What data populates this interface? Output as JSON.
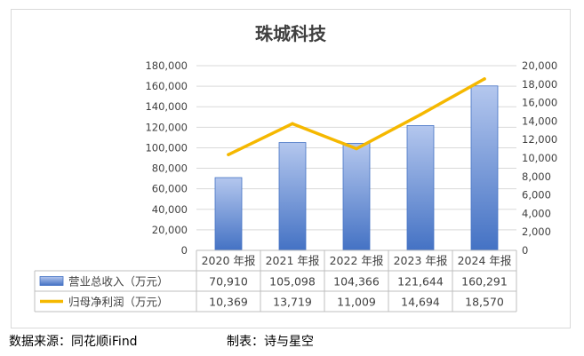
{
  "chart_data": {
    "type": "bar",
    "title": "珠城科技",
    "categories": [
      "2020 年报",
      "2021 年报",
      "2022 年报",
      "2023 年报",
      "2024 年报"
    ],
    "series": [
      {
        "name": "营业总收入（万元）",
        "type": "bar",
        "axis": "left",
        "values": [
          70910,
          105098,
          104366,
          121644,
          160291
        ],
        "labels": [
          "70,910",
          "105,098",
          "104,366",
          "121,644",
          "160,291"
        ]
      },
      {
        "name": "归母净利润（万元）",
        "type": "line",
        "axis": "right",
        "values": [
          10369,
          13719,
          11009,
          14694,
          18570
        ],
        "labels": [
          "10,369",
          "13,719",
          "11,009",
          "14,694",
          "18,570"
        ]
      }
    ],
    "y_left": {
      "min": 0,
      "max": 180000,
      "step": 20000,
      "ticks": [
        "0",
        "20,000",
        "40,000",
        "60,000",
        "80,000",
        "100,000",
        "120,000",
        "140,000",
        "160,000",
        "180,000"
      ]
    },
    "y_right": {
      "min": 0,
      "max": 20000,
      "step": 2000,
      "ticks": [
        "0",
        "2,000",
        "4,000",
        "6,000",
        "8,000",
        "10,000",
        "12,000",
        "14,000",
        "16,000",
        "18,000",
        "20,000"
      ]
    },
    "grid": true,
    "legend": "data-table-left",
    "colors": {
      "bar_top": "#b4c7ee",
      "bar_bottom": "#4472c4",
      "line": "#f5b800",
      "grid": "#d9d9d9",
      "title": "#404040",
      "text": "#404040"
    }
  },
  "footer": {
    "source": "数据来源：同花顺iFind",
    "maker": "制表：诗与星空"
  }
}
